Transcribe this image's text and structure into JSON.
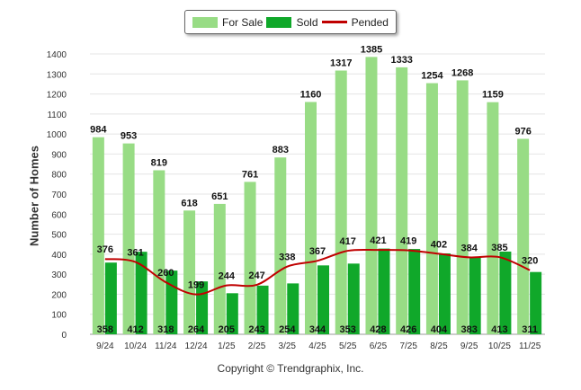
{
  "chart_data": {
    "type": "bar",
    "ylabel": "Number of Homes",
    "ylim": [
      0,
      1400
    ],
    "ytick_step": 100,
    "grid": true,
    "legend_position": "top-center",
    "categories": [
      "9/24",
      "10/24",
      "11/24",
      "12/24",
      "1/25",
      "2/25",
      "3/25",
      "4/25",
      "5/25",
      "6/25",
      "7/25",
      "8/25",
      "9/25",
      "10/25",
      "11/25"
    ],
    "series": [
      {
        "name": "For Sale",
        "kind": "bar",
        "color": "#98dc85",
        "values": [
          984,
          953,
          819,
          618,
          651,
          761,
          883,
          1160,
          1317,
          1385,
          1333,
          1254,
          1268,
          1159,
          976
        ]
      },
      {
        "name": "Sold",
        "kind": "bar",
        "color": "#10a82a",
        "values": [
          358,
          412,
          318,
          264,
          205,
          243,
          254,
          344,
          353,
          428,
          426,
          404,
          383,
          413,
          311
        ]
      },
      {
        "name": "Pended",
        "kind": "line",
        "color": "#c00000",
        "values": [
          376,
          361,
          260,
          199,
          244,
          247,
          338,
          367,
          417,
          421,
          419,
          402,
          384,
          385,
          320
        ]
      }
    ]
  },
  "footer": {
    "copyright": "Copyright © Trendgraphix, Inc."
  }
}
